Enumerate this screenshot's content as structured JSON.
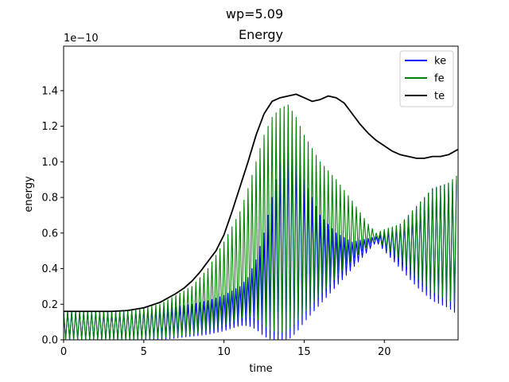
{
  "figure": {
    "suptitle": "wp=5.09"
  },
  "chart_data": {
    "type": "line",
    "title": "Energy",
    "xlabel": "time",
    "ylabel": "energy",
    "y_scale_label": "1e−10",
    "xlim": [
      0,
      24.6
    ],
    "ylim": [
      0,
      1.65
    ],
    "x_ticks": [
      0,
      5,
      10,
      15,
      20
    ],
    "x_tick_labels": [
      "0",
      "5",
      "10",
      "15",
      "20"
    ],
    "y_ticks": [
      0.0,
      0.2,
      0.4,
      0.6,
      0.8,
      1.0,
      1.2,
      1.4
    ],
    "y_tick_labels": [
      "0.0",
      "0.2",
      "0.4",
      "0.6",
      "0.8",
      "1.0",
      "1.2",
      "1.4"
    ],
    "grid": false,
    "legend_position": "top-right",
    "oscillation_period": 0.25,
    "series": [
      {
        "name": "ke",
        "color": "#0000ff",
        "style": "oscillating-band",
        "envelope_x": [
          0,
          2,
          4,
          6,
          8,
          9,
          10,
          11,
          11.5,
          12,
          12.5,
          13,
          13.5,
          14,
          14.5,
          15,
          16,
          17,
          18,
          19,
          19.5,
          20,
          21,
          22,
          23,
          24,
          24.6
        ],
        "envelope_low": [
          0.0,
          0.0,
          0.0,
          0.0,
          0.02,
          0.03,
          0.05,
          0.08,
          0.08,
          0.06,
          0.02,
          0.0,
          0.0,
          0.0,
          0.04,
          0.1,
          0.2,
          0.3,
          0.4,
          0.5,
          0.55,
          0.5,
          0.4,
          0.3,
          0.22,
          0.18,
          0.14
        ],
        "envelope_high": [
          0.16,
          0.16,
          0.16,
          0.17,
          0.2,
          0.22,
          0.25,
          0.3,
          0.35,
          0.45,
          0.6,
          0.8,
          1.0,
          1.1,
          1.05,
          0.9,
          0.7,
          0.6,
          0.55,
          0.57,
          0.58,
          0.6,
          0.65,
          0.75,
          0.85,
          0.88,
          0.9
        ]
      },
      {
        "name": "fe",
        "color": "#008000",
        "style": "oscillating-band",
        "envelope_x": [
          0,
          2,
          4,
          6,
          8,
          9,
          10,
          11,
          11.5,
          12,
          12.5,
          13,
          13.5,
          14,
          14.5,
          15,
          16,
          17,
          18,
          19,
          19.5,
          20,
          21,
          22,
          23,
          24,
          24.6
        ],
        "envelope_low": [
          0.0,
          0.0,
          0.0,
          0.01,
          0.03,
          0.05,
          0.08,
          0.12,
          0.13,
          0.12,
          0.08,
          0.05,
          0.04,
          0.05,
          0.1,
          0.15,
          0.25,
          0.35,
          0.45,
          0.53,
          0.57,
          0.52,
          0.45,
          0.35,
          0.27,
          0.22,
          0.2
        ],
        "envelope_high": [
          0.16,
          0.16,
          0.16,
          0.2,
          0.3,
          0.4,
          0.55,
          0.72,
          0.85,
          1.0,
          1.15,
          1.25,
          1.3,
          1.32,
          1.25,
          1.15,
          1.0,
          0.9,
          0.78,
          0.65,
          0.6,
          0.62,
          0.65,
          0.75,
          0.85,
          0.88,
          0.93
        ]
      },
      {
        "name": "te",
        "color": "#000000",
        "style": "line",
        "x": [
          0,
          1,
          2,
          3,
          4,
          5,
          6,
          7,
          7.5,
          8,
          8.5,
          9,
          9.5,
          10,
          10.5,
          11,
          11.5,
          12,
          12.5,
          13,
          13.5,
          14,
          14.5,
          15,
          15.5,
          16,
          16.5,
          17,
          17.5,
          18,
          18.5,
          19,
          19.5,
          20,
          20.5,
          21,
          21.5,
          22,
          22.5,
          23,
          23.5,
          24,
          24.6
        ],
        "y": [
          0.16,
          0.16,
          0.16,
          0.16,
          0.165,
          0.18,
          0.21,
          0.26,
          0.29,
          0.33,
          0.38,
          0.44,
          0.5,
          0.59,
          0.72,
          0.86,
          1.0,
          1.15,
          1.27,
          1.34,
          1.36,
          1.37,
          1.38,
          1.36,
          1.34,
          1.35,
          1.37,
          1.36,
          1.33,
          1.27,
          1.21,
          1.16,
          1.12,
          1.09,
          1.06,
          1.04,
          1.03,
          1.02,
          1.02,
          1.03,
          1.03,
          1.04,
          1.07
        ]
      }
    ]
  }
}
